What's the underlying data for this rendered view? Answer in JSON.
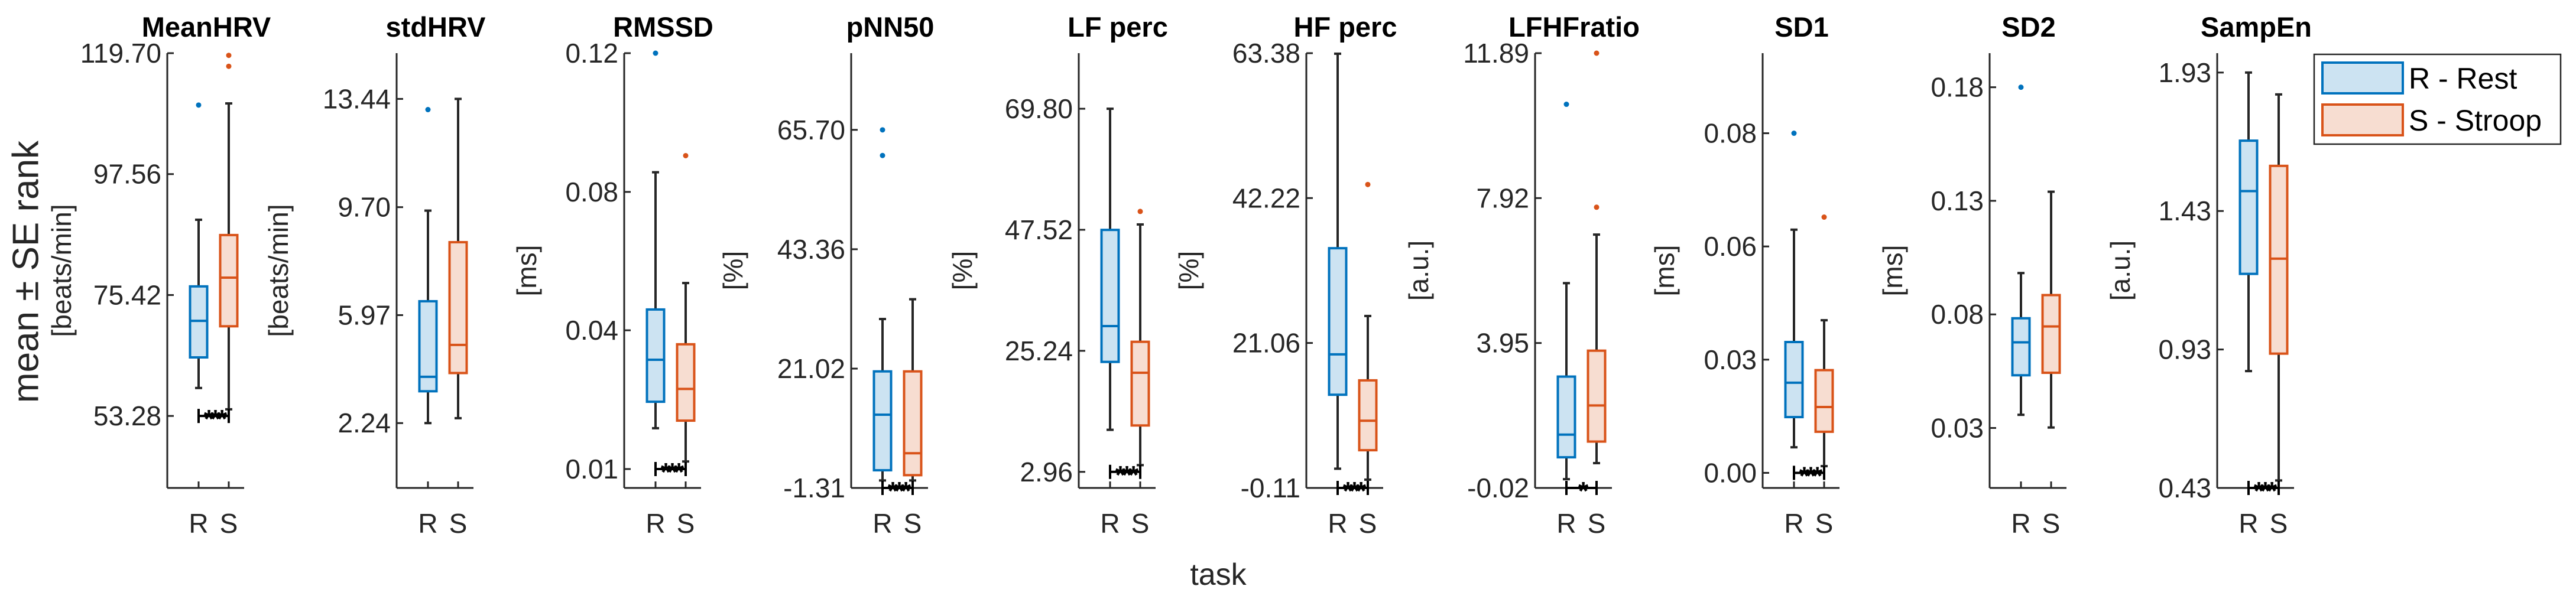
{
  "figure": {
    "ylabel": "mean ± SE rank",
    "xlabel": "task",
    "categories": [
      "R",
      "S"
    ],
    "legend": [
      {
        "label": "R - Rest",
        "edge": "#0072BD",
        "fill": "#CCE3F2"
      },
      {
        "label": "S - Stroop",
        "edge": "#D95319",
        "fill": "#F7DDD1"
      }
    ],
    "legend_placement": "top-right",
    "colors": {
      "axis": "#262626",
      "whisker": "#262626",
      "rest": "#0072BD",
      "stroop": "#D95319"
    }
  },
  "chart_data": [
    {
      "type": "box",
      "title": "MeanHRV",
      "ylabel": "[beats/min]",
      "ylim": [
        40.1,
        119.7
      ],
      "ticks": [
        53.28,
        75.42,
        97.56,
        119.7
      ],
      "tick_labels": [
        "53.28",
        "75.42",
        "97.56",
        "119.70"
      ],
      "series": [
        {
          "name": "R",
          "whisker_low": 58.4,
          "q1": 64.0,
          "median": 70.7,
          "q3": 77.0,
          "whisker_high": 89.2,
          "outliers": [
            110.2
          ]
        },
        {
          "name": "S",
          "whisker_low": 54.5,
          "q1": 69.7,
          "median": 78.6,
          "q3": 86.4,
          "whisker_high": 110.5,
          "outliers": [
            119.3,
            117.3
          ]
        }
      ],
      "significance": {
        "value": 53.28,
        "stars": "***"
      }
    },
    {
      "type": "box",
      "title": "stdHRV",
      "ylabel": "[beats/min]",
      "ylim": [
        0,
        15.02
      ],
      "ticks": [
        2.24,
        5.97,
        9.7,
        13.44
      ],
      "tick_labels": [
        "2.24",
        "5.97",
        "9.70",
        "13.44"
      ],
      "series": [
        {
          "name": "R",
          "whisker_low": 2.24,
          "q1": 3.34,
          "median": 3.84,
          "q3": 6.45,
          "whisker_high": 9.58,
          "outliers": [
            13.07
          ]
        },
        {
          "name": "S",
          "whisker_low": 2.41,
          "q1": 3.97,
          "median": 4.94,
          "q3": 8.49,
          "whisker_high": 13.44,
          "outliers": []
        }
      ],
      "significance": null
    },
    {
      "type": "box",
      "title": "RMSSD",
      "ylabel": "[ms]",
      "ylim": [
        0,
        0.115
      ],
      "ticks": [
        0.005,
        0.0417,
        0.0783,
        0.115
      ],
      "tick_labels": [
        "0.01",
        "0.04",
        "0.08",
        "0.12"
      ],
      "series": [
        {
          "name": "R",
          "whisker_low": 0.0158,
          "q1": 0.0228,
          "median": 0.0339,
          "q3": 0.0472,
          "whisker_high": 0.0835,
          "outliers": [
            0.115
          ]
        },
        {
          "name": "S",
          "whisker_low": 0.007,
          "q1": 0.0178,
          "median": 0.0262,
          "q3": 0.038,
          "whisker_high": 0.0542,
          "outliers": [
            0.0879
          ]
        }
      ],
      "significance": {
        "value": 0.005,
        "stars": "***"
      }
    },
    {
      "type": "box",
      "title": "pNN50",
      "ylabel": "[%]",
      "ylim": [
        -1.31,
        80.05
      ],
      "ticks": [
        -1.31,
        21.02,
        43.36,
        65.7
      ],
      "tick_labels": [
        "-1.31",
        "21.02",
        "43.36",
        "65.70"
      ],
      "series": [
        {
          "name": "R",
          "whisker_low": 0.09,
          "q1": 2.0,
          "median": 12.4,
          "q3": 20.5,
          "whisker_high": 30.3,
          "outliers": [
            65.7,
            60.9
          ]
        },
        {
          "name": "S",
          "whisker_low": 0.09,
          "q1": 1.08,
          "median": 5.18,
          "q3": 20.5,
          "whisker_high": 34.0,
          "outliers": []
        }
      ],
      "significance": {
        "value": -1.31,
        "stars": "***"
      }
    },
    {
      "type": "box",
      "title": "LF perc",
      "ylabel": "[%]",
      "ylim": [
        0,
        80.03
      ],
      "ticks": [
        2.96,
        25.24,
        47.52,
        69.8
      ],
      "tick_labels": [
        "2.96",
        "25.24",
        "47.52",
        "69.80"
      ],
      "series": [
        {
          "name": "R",
          "whisker_low": 10.7,
          "q1": 23.2,
          "median": 29.8,
          "q3": 47.5,
          "whisker_high": 69.8,
          "outliers": []
        },
        {
          "name": "S",
          "whisker_low": 4.2,
          "q1": 11.5,
          "median": 21.2,
          "q3": 26.9,
          "whisker_high": 48.5,
          "outliers": [
            50.9
          ]
        }
      ],
      "significance": {
        "value": 2.96,
        "stars": "***"
      }
    },
    {
      "type": "box",
      "title": "HF perc",
      "ylabel": "[%]",
      "ylim": [
        -0.11,
        63.38
      ],
      "ticks": [
        -0.11,
        21.06,
        42.22,
        63.38
      ],
      "tick_labels": [
        "-0.11",
        "21.06",
        "42.22",
        "63.38"
      ],
      "series": [
        {
          "name": "R",
          "whisker_low": 2.7,
          "q1": 13.5,
          "median": 19.4,
          "q3": 34.9,
          "whisker_high": 63.3,
          "outliers": []
        },
        {
          "name": "S",
          "whisker_low": 1.1,
          "q1": 5.4,
          "median": 9.7,
          "q3": 15.6,
          "whisker_high": 25.0,
          "outliers": [
            44.2
          ]
        }
      ],
      "significance": {
        "value": -0.11,
        "stars": "***"
      }
    },
    {
      "type": "box",
      "title": "LFHFratio",
      "ylabel": "[a.u.]",
      "ylim": [
        -0.02,
        11.89
      ],
      "ticks": [
        -0.02,
        3.95,
        7.92,
        11.89
      ],
      "tick_labels": [
        "-0.02",
        "3.95",
        "7.92",
        "11.89"
      ],
      "series": [
        {
          "name": "R",
          "whisker_low": 0.22,
          "q1": 0.82,
          "median": 1.44,
          "q3": 3.03,
          "whisker_high": 5.59,
          "outliers": [
            10.49
          ]
        },
        {
          "name": "S",
          "whisker_low": 0.66,
          "q1": 1.25,
          "median": 2.24,
          "q3": 3.74,
          "whisker_high": 6.92,
          "outliers": [
            11.89,
            7.67
          ]
        }
      ],
      "significance": {
        "value": -0.02,
        "stars": "*"
      }
    },
    {
      "type": "box",
      "title": "SD1",
      "ylabel": "[ms]",
      "ylim": [
        -0.0006,
        0.1031
      ],
      "ticks": [
        0.003,
        0.03,
        0.057,
        0.084
      ],
      "tick_labels": [
        "0.00",
        "0.03",
        "0.06",
        "0.08"
      ],
      "series": [
        {
          "name": "R",
          "whisker_low": 0.0091,
          "q1": 0.0163,
          "median": 0.0245,
          "q3": 0.0342,
          "whisker_high": 0.061,
          "outliers": [
            0.084
          ]
        },
        {
          "name": "S",
          "whisker_low": 0.0046,
          "q1": 0.0128,
          "median": 0.0187,
          "q3": 0.0275,
          "whisker_high": 0.0394,
          "outliers": [
            0.064
          ]
        }
      ],
      "significance": {
        "value": 0.003,
        "stars": "***"
      }
    },
    {
      "type": "box",
      "title": "SD2",
      "ylabel": "[ms]",
      "ylim": [
        0.0036,
        0.195
      ],
      "ticks": [
        0.03,
        0.08,
        0.13,
        0.18
      ],
      "tick_labels": [
        "0.03",
        "0.08",
        "0.13",
        "0.18"
      ],
      "series": [
        {
          "name": "R",
          "whisker_low": 0.0358,
          "q1": 0.0532,
          "median": 0.0677,
          "q3": 0.0783,
          "whisker_high": 0.0982,
          "outliers": [
            0.18
          ]
        },
        {
          "name": "S",
          "whisker_low": 0.0302,
          "q1": 0.0543,
          "median": 0.0747,
          "q3": 0.0885,
          "whisker_high": 0.134,
          "outliers": []
        }
      ],
      "significance": null
    },
    {
      "type": "box",
      "title": "SampEn",
      "ylabel": "[a.u.]",
      "ylim": [
        0.43,
        2.0
      ],
      "ticks": [
        0.43,
        0.93,
        1.43,
        1.93
      ],
      "tick_labels": [
        "0.43",
        "0.93",
        "1.43",
        "1.93"
      ],
      "series": [
        {
          "name": "R",
          "whisker_low": 0.852,
          "q1": 1.203,
          "median": 1.502,
          "q3": 1.684,
          "whisker_high": 1.93,
          "outliers": []
        },
        {
          "name": "S",
          "whisker_low": 0.457,
          "q1": 0.915,
          "median": 1.258,
          "q3": 1.593,
          "whisker_high": 1.851,
          "outliers": []
        }
      ],
      "significance": {
        "value": 0.43,
        "stars": "***"
      }
    }
  ]
}
